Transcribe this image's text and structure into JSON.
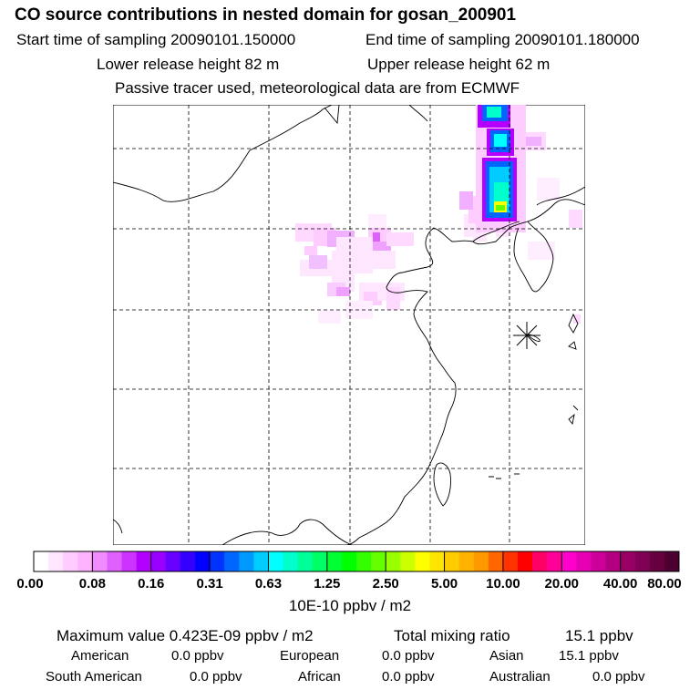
{
  "header": {
    "title": "CO  source contributions in nested domain for gosan_200901",
    "start_label": "Start time of sampling 20090101.150000",
    "end_label": "End time of sampling 20090101.180000",
    "lower_label": "Lower release height   82 m",
    "upper_label": "Upper release height   62 m",
    "note": "Passive tracer used, meteorological data are from ECMWF"
  },
  "legend": {
    "tick_labels": [
      "0.00",
      "0.08",
      "0.16",
      "0.31",
      "0.63",
      "1.25",
      "2.50",
      "5.00",
      "10.00",
      "20.00",
      "40.00",
      "80.00"
    ],
    "unit_label": "10E-10 ppbv / m2",
    "colors": [
      "#ffffff",
      "#ffe6ff",
      "#ffccff",
      "#ffb3ff",
      "#f08cff",
      "#e060ff",
      "#cc33ff",
      "#b300ff",
      "#9900ff",
      "#6600ff",
      "#3300ff",
      "#0000ff",
      "#0033ff",
      "#0066ff",
      "#0099ff",
      "#00ccff",
      "#00ffff",
      "#00ffcc",
      "#00ff99",
      "#00ff66",
      "#00ff33",
      "#00ff00",
      "#33ff00",
      "#66ff00",
      "#99ff00",
      "#ccff00",
      "#ffff00",
      "#ffe600",
      "#ffcc00",
      "#ffb300",
      "#ff9900",
      "#ff6600",
      "#ff3300",
      "#ff0000",
      "#ff0066",
      "#ff0099",
      "#ff00cc",
      "#e600b3",
      "#cc0099",
      "#b30080",
      "#990066",
      "#800055",
      "#66003f",
      "#4d0030"
    ]
  },
  "stats": {
    "max_label": "Maximum value  0.423E-09 ppbv / m2",
    "total_label": "Total mixing ratio",
    "total_value": "15.1 ppbv",
    "regions": [
      {
        "name": "American",
        "value": "0.0 ppbv"
      },
      {
        "name": "European",
        "value": "0.0 ppbv"
      },
      {
        "name": "Asian",
        "value": "15.1 ppbv"
      },
      {
        "name": "South American",
        "value": "0.0 ppbv"
      },
      {
        "name": "African",
        "value": "0.0 ppbv"
      },
      {
        "name": "Australian",
        "value": "0.0 ppbv"
      }
    ]
  }
}
